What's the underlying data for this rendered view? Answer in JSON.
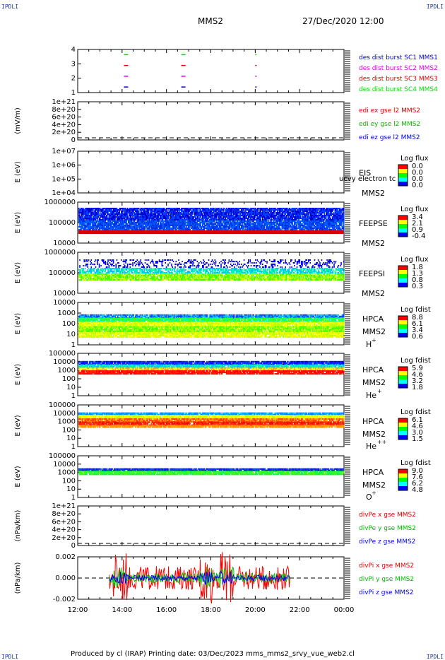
{
  "corners": {
    "tl": "IPDLI",
    "tr": "IPDLI",
    "bl": "IPDLI",
    "br": "IPDLI"
  },
  "header": {
    "spacecraft": "MMS2",
    "datetime": "27/Dec/2020 12:00"
  },
  "footer": {
    "text": "Produced by cl (IRAP)   Printing date: 03/Dec/2023   mms_mms2_srvy_vue_web2.cl"
  },
  "colors": {
    "red": "#ff0000",
    "green": "#00dd00",
    "blue": "#0000dd",
    "magenta": "#dd00dd"
  },
  "chart_data": [
    {
      "id": "p1",
      "type": "scatter",
      "yticks": [
        "1",
        "2",
        "3",
        "4"
      ],
      "ylim": [
        0.5,
        4.5
      ],
      "legend": [
        {
          "text": "des dist burst SC1 MMS1",
          "color": "#0000dd"
        },
        {
          "text": "des dist burst SC2 MMS2",
          "color": "#dd00dd"
        },
        {
          "text": "des dist burst SC3 MMS3",
          "color": "#dd0000"
        },
        {
          "text": "des dist burst SC4 MMS4",
          "color": "#00dd00"
        }
      ],
      "series": [
        {
          "sc": 1,
          "color": "#0000dd",
          "times": [
            "14:05",
            "16:40",
            "20:00"
          ]
        },
        {
          "sc": 2,
          "color": "#dd00dd",
          "times": [
            "14:05",
            "16:40",
            "20:00"
          ]
        },
        {
          "sc": 3,
          "color": "#dd0000",
          "times": [
            "14:05",
            "16:40",
            "20:00"
          ]
        },
        {
          "sc": 4,
          "color": "#00dd00",
          "times": [
            "14:05",
            "16:40",
            "20:00"
          ]
        }
      ]
    },
    {
      "id": "p2",
      "type": "line",
      "ylabel": "(mV/m)",
      "yticks": [
        "0",
        "2e+20",
        "4e+20",
        "6e+20",
        "8e+20",
        "1e+21"
      ],
      "ylim": [
        0,
        1e+21
      ],
      "dashed_zero": true,
      "legend": [
        {
          "text": "edi ex gse l2 MMS2",
          "color": "#dd0000"
        },
        {
          "text": "edi ey gse l2 MMS2",
          "color": "#00bb00"
        },
        {
          "text": "edi ez gse l2 MMS2",
          "color": "#0000dd"
        }
      ]
    },
    {
      "id": "p3",
      "type": "heatmap",
      "ylabel": "E (eV)",
      "yticks": [
        "1e+04",
        "1e+05",
        "1e+06",
        "1e+07"
      ],
      "instrument": "EIS",
      "note": "ucvy electron tc",
      "sc": "MMS2",
      "cbar_title": "Log flux",
      "cbar_ticks": [
        "0.0",
        "0.0",
        "0.0",
        "0.0"
      ]
    },
    {
      "id": "p4",
      "type": "heatmap",
      "ylabel": "E (eV)",
      "yticks": [
        "10000",
        "100000",
        "1000000"
      ],
      "instrument": "FEEPSE",
      "sc": "MMS2",
      "cbar_title": "Log flux",
      "cbar_ticks": [
        "3.4",
        "2.1",
        "0.9",
        "-0.4"
      ]
    },
    {
      "id": "p5",
      "type": "heatmap",
      "ylabel": "E (eV)",
      "yticks": [
        "10000",
        "100000",
        "1000000"
      ],
      "instrument": "FEEPSI",
      "sc": "MMS2",
      "cbar_title": "Log flux",
      "cbar_ticks": [
        "1.8",
        "1.3",
        "0.8",
        "0.3"
      ]
    },
    {
      "id": "p6",
      "type": "heatmap",
      "ylabel": "E (eV)",
      "yticks": [
        "1",
        "10",
        "100",
        "1000",
        "10000"
      ],
      "instrument": "HPCA",
      "sc": "MMS2",
      "species": "H",
      "species_sup": "+",
      "cbar_title": "Log fdist",
      "cbar_ticks": [
        "8.8",
        "6.1",
        "3.4",
        "0.6"
      ]
    },
    {
      "id": "p7",
      "type": "heatmap",
      "ylabel": "E (eV)",
      "yticks": [
        "1",
        "10",
        "100",
        "1000",
        "10000",
        "100000"
      ],
      "instrument": "HPCA",
      "sc": "MMS2",
      "species": "He",
      "species_sup": "+",
      "cbar_title": "Log fdist",
      "cbar_ticks": [
        "5.9",
        "4.6",
        "3.2",
        "1.8"
      ]
    },
    {
      "id": "p8",
      "type": "heatmap",
      "ylabel": "E (eV)",
      "yticks": [
        "1",
        "10",
        "100",
        "1000",
        "10000",
        "100000"
      ],
      "instrument": "HPCA",
      "sc": "MMS2",
      "species": "He",
      "species_sup": "++",
      "cbar_title": "Log fdist",
      "cbar_ticks": [
        "6.1",
        "4.6",
        "3.0",
        "1.5"
      ]
    },
    {
      "id": "p9",
      "type": "heatmap",
      "ylabel": "E (eV)",
      "yticks": [
        "1",
        "10",
        "100",
        "1000",
        "10000",
        "100000"
      ],
      "instrument": "HPCA",
      "sc": "MMS2",
      "species": "O",
      "species_sup": "+",
      "cbar_title": "Log fdist",
      "cbar_ticks": [
        "9.0",
        "7.6",
        "6.2",
        "4.8"
      ]
    },
    {
      "id": "p10",
      "type": "line",
      "ylabel": "(nPa/km)",
      "yticks": [
        "0",
        "2e+20",
        "4e+20",
        "6e+20",
        "8e+20",
        "1e+21"
      ],
      "ylim": [
        0,
        1e+21
      ],
      "dashed_zero": true,
      "legend": [
        {
          "text": "divPe x gse MMS2",
          "color": "#dd0000"
        },
        {
          "text": "divPe y gse MMS2",
          "color": "#00bb00"
        },
        {
          "text": "divPe z gse MMS2",
          "color": "#0000dd"
        }
      ]
    },
    {
      "id": "p11",
      "type": "line",
      "ylabel": "(nPa/km)",
      "yticks": [
        "-0.002",
        "0.000",
        "0.002"
      ],
      "ylim": [
        -0.0035,
        0.0035
      ],
      "dashed_zero": true,
      "legend": [
        {
          "text": "divPi x gse MMS2",
          "color": "#dd0000"
        },
        {
          "text": "divPi y gse MMS2",
          "color": "#00bb00"
        },
        {
          "text": "divPi z gse MMS2",
          "color": "#0000dd"
        }
      ],
      "data_range": [
        "13:25",
        "21:35"
      ],
      "amplitude": {
        "x": 0.0028,
        "y": 0.0012,
        "z": 0.0007
      }
    }
  ],
  "xaxis": {
    "ticks": [
      "12:00",
      "14:00",
      "16:00",
      "18:00",
      "20:00",
      "22:00",
      "00:00"
    ],
    "range_hours": [
      12,
      24
    ]
  }
}
